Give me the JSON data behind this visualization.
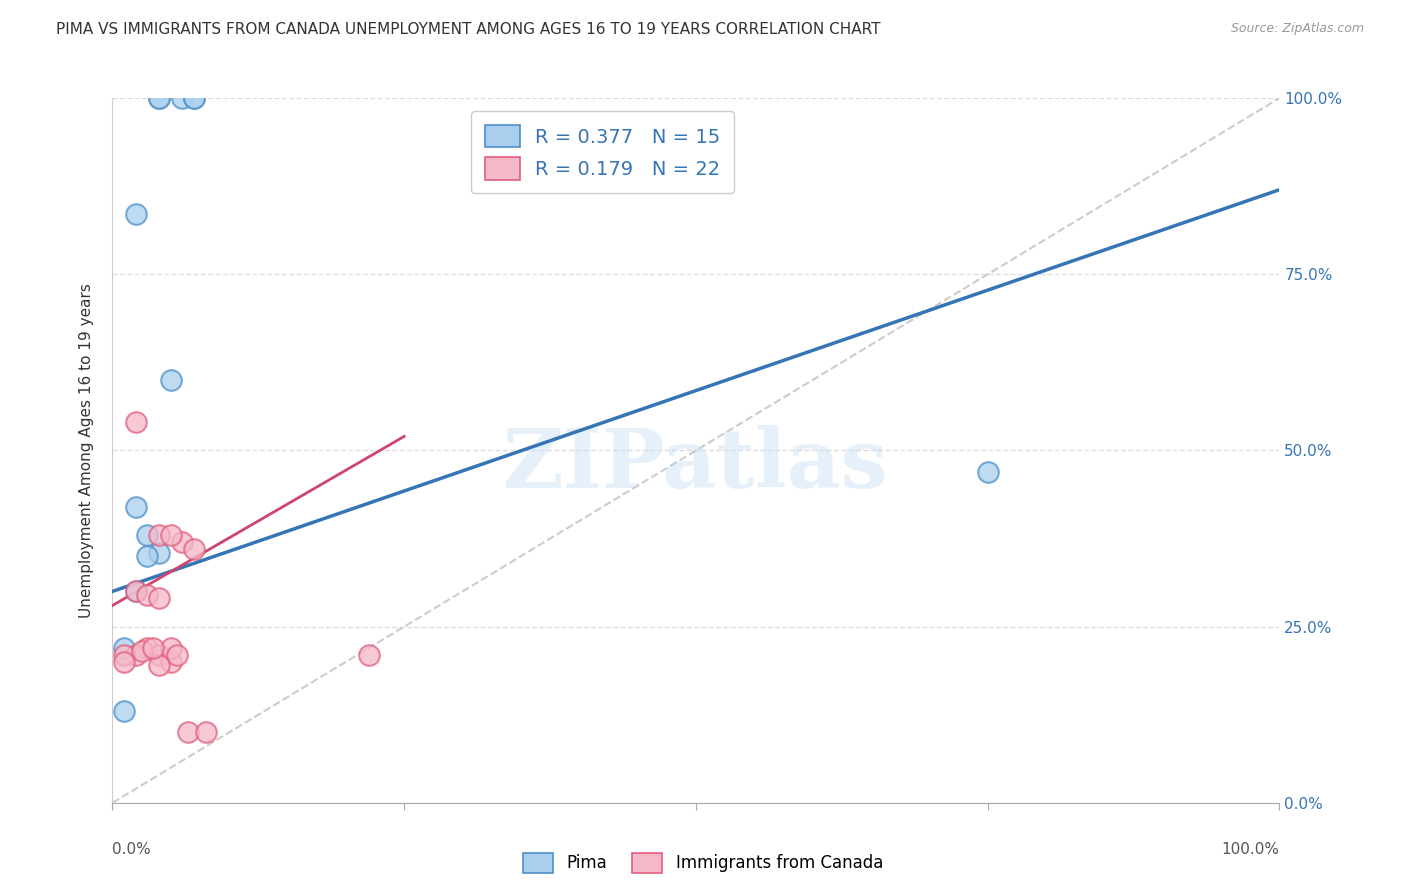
{
  "title": "PIMA VS IMMIGRANTS FROM CANADA UNEMPLOYMENT AMONG AGES 16 TO 19 YEARS CORRELATION CHART",
  "source": "Source: ZipAtlas.com",
  "ylabel": "Unemployment Among Ages 16 to 19 years",
  "ylabel_right_ticks": [
    "100.0%",
    "75.0%",
    "50.0%",
    "25.0%",
    "0.0%"
  ],
  "ylabel_right_vals": [
    1.0,
    0.75,
    0.5,
    0.25,
    0.0
  ],
  "pima_fill_color": "#aacfee",
  "pima_edge_color": "#4f90c8",
  "pima_line_color": "#3575b5",
  "canada_fill_color": "#f5b8c8",
  "canada_edge_color": "#e06080",
  "canada_line_color": "#d04570",
  "diagonal_color": "#cccccc",
  "legend_R_pima": "0.377",
  "legend_N_pima": "15",
  "legend_R_canada": "0.179",
  "legend_N_canada": "22",
  "legend_text_color": "#3575b5",
  "pima_scatter_x": [
    0.02,
    0.04,
    0.04,
    0.06,
    0.07,
    0.07,
    0.05,
    0.02,
    0.03,
    0.04,
    0.03,
    0.02,
    0.01,
    0.01,
    0.75
  ],
  "pima_scatter_y": [
    0.835,
    1.0,
    1.0,
    1.0,
    1.0,
    1.0,
    0.6,
    0.42,
    0.38,
    0.355,
    0.35,
    0.3,
    0.22,
    0.13,
    0.47
  ],
  "canada_scatter_x": [
    0.02,
    0.04,
    0.06,
    0.07,
    0.02,
    0.03,
    0.04,
    0.05,
    0.03,
    0.04,
    0.05,
    0.04,
    0.05,
    0.02,
    0.01,
    0.01,
    0.025,
    0.035,
    0.055,
    0.065,
    0.08,
    0.22
  ],
  "canada_scatter_y": [
    0.54,
    0.38,
    0.37,
    0.36,
    0.3,
    0.295,
    0.29,
    0.38,
    0.22,
    0.21,
    0.2,
    0.195,
    0.22,
    0.21,
    0.21,
    0.2,
    0.215,
    0.22,
    0.21,
    0.1,
    0.1,
    0.21
  ],
  "pima_line_x0": 0.0,
  "pima_line_y0": 0.3,
  "pima_line_x1": 1.0,
  "pima_line_y1": 0.87,
  "canada_line_x0": 0.0,
  "canada_line_y0": 0.28,
  "canada_line_x1": 0.25,
  "canada_line_y1": 0.52,
  "xlim": [
    0.0,
    1.0
  ],
  "ylim": [
    0.0,
    1.0
  ],
  "background_color": "#ffffff",
  "grid_color": "#dddddd"
}
